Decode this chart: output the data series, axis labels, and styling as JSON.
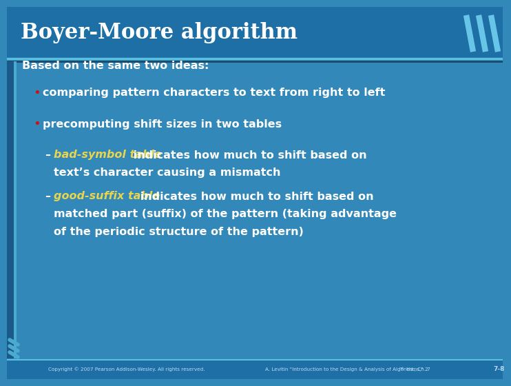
{
  "title": "Boyer-Moore algorithm",
  "header_bg": "#1e6fa5",
  "content_bg": "#3288b8",
  "title_color": "#ffffff",
  "content_color": "#ffffff",
  "bullet_color": "#cc1111",
  "yellow_color": "#e8d44d",
  "intro_text": "Based on the same two ideas:",
  "bullet1": "comparing pattern characters to text from right to left",
  "bullet2": "precomputing shift sizes in two tables",
  "sub1_italic": "bad-symbol table",
  "sub1_rest1": " indicates how much to shift based on",
  "sub1_rest2": "text’s character causing a mismatch",
  "sub2_italic": "good-suffix table",
  "sub2_rest1": " indicates how much to shift based on",
  "sub2_rest2": "matched part (suffix) of the pattern (taking advantage",
  "sub2_rest3": "of the periodic structure of the pattern)",
  "footer_left": "Copyright © 2007 Pearson Addison-Wesley. All rights reserved.",
  "footer_middle": "A. Levitin \"Introduction to the Design & Analysis of Algorithms,\" 2nd ed., Ch. 7",
  "footer_right": "7-8",
  "stripe_dark": "#1a5a8a",
  "stripe_light": "#4aaad0",
  "sep_line_color": "#1a4a6a",
  "sep_line_color2": "#5ac0e0"
}
